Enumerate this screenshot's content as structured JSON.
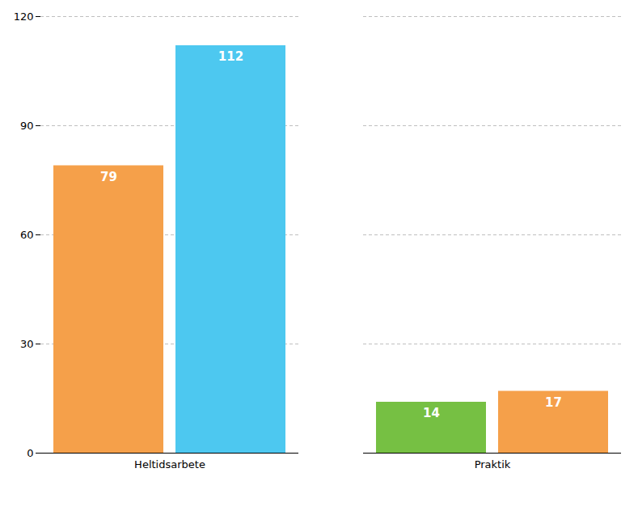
{
  "chart_data": {
    "type": "bar",
    "categories": [
      "Heltidsarbete",
      "Praktik"
    ],
    "series": [
      {
        "values": [
          79,
          14
        ],
        "colors": [
          "#F5A04A",
          "#76C043"
        ]
      },
      {
        "values": [
          112,
          17
        ],
        "colors": [
          "#4DC8F0",
          "#F5A04A"
        ]
      }
    ],
    "ylim": [
      0,
      120
    ],
    "yticks": [
      0,
      30,
      60,
      90,
      120
    ],
    "grid": true,
    "data_labels": true
  }
}
